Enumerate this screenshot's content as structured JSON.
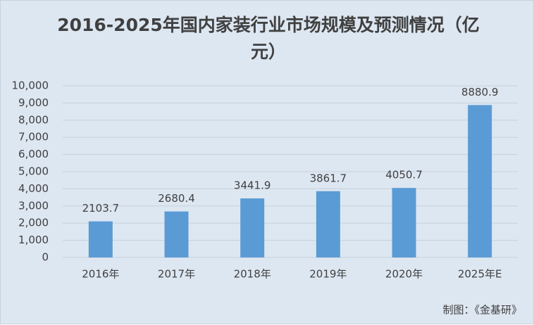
{
  "chart_data": {
    "type": "bar",
    "title": "2016-2025年国内家装行业市场规模及预测情况（亿元）",
    "source": "制图：《金基研》",
    "categories": [
      "2016年",
      "2017年",
      "2018年",
      "2019年",
      "2020年",
      "2025年E"
    ],
    "values": [
      2103.7,
      2680.4,
      3441.9,
      3861.7,
      4050.7,
      8880.9
    ],
    "color": "#5b9bd5",
    "ylim": [
      0,
      10000
    ],
    "yticks": [
      0,
      {
        "value": 1000,
        "label": "1,000"
      },
      {
        "value": 2000,
        "label": "2,000"
      },
      {
        "value": 3000,
        "label": "3,000"
      },
      {
        "value": 4000,
        "label": "4,000"
      },
      {
        "value": 5000,
        "label": "5,000"
      },
      {
        "value": 6000,
        "label": "6,000"
      },
      {
        "value": 7000,
        "label": "7,000"
      },
      {
        "value": 8000,
        "label": "8,000"
      },
      {
        "value": 9000,
        "label": "9,000"
      },
      {
        "value": 10000,
        "label": "10,000"
      }
    ],
    "grid": true
  }
}
